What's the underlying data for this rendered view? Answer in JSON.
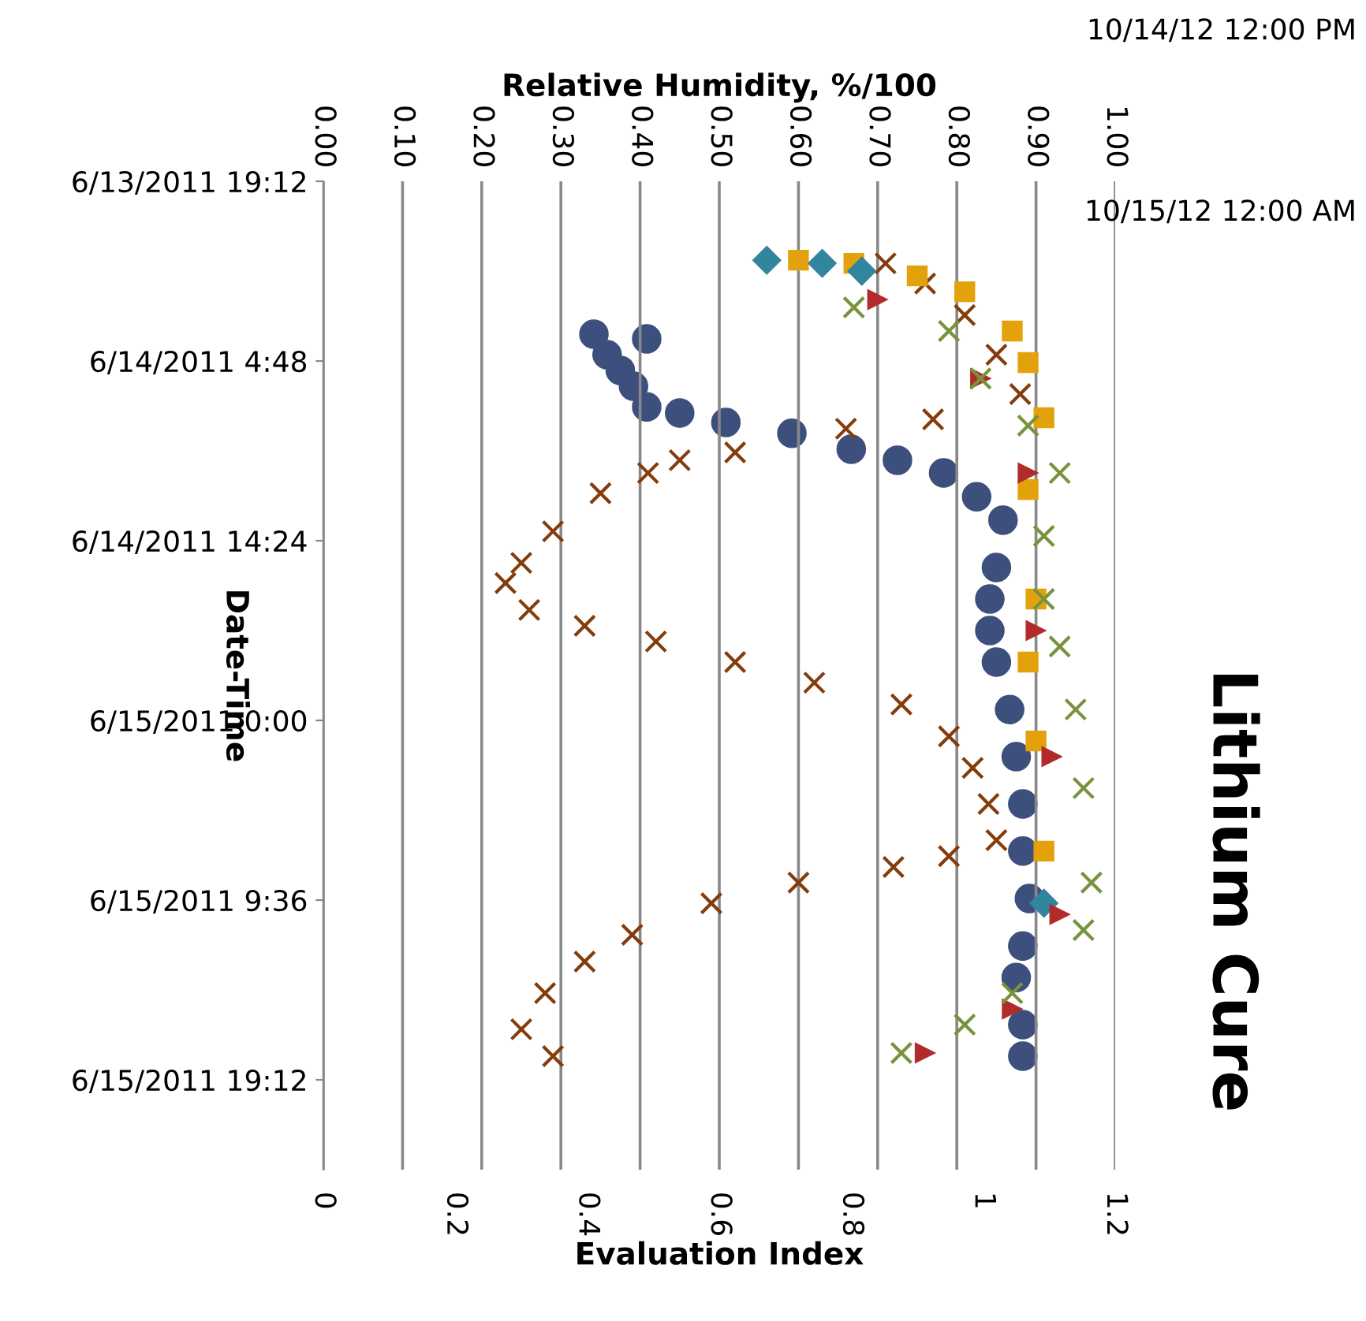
{
  "chart_data": {
    "type": "scatter",
    "title": "Lithium Cure",
    "ylabel": "Date-Time",
    "xlabel": "Evaluation Index",
    "x2label": "Relative Humidity, %/100",
    "annotations": [
      "10/14/12 12:00 PM",
      "10/15/12 12:00 AM"
    ],
    "orientation": "horizontal",
    "grid": "x2",
    "legend": false,
    "xlim": [
      0,
      1.2
    ],
    "xticks": [
      0,
      0.2,
      0.4,
      0.6,
      0.8,
      1,
      1.2
    ],
    "x2lim": [
      0,
      1
    ],
    "x2ticks": [
      {
        "value": 0,
        "label": "0.00"
      },
      {
        "value": 0.1,
        "label": "0.10"
      },
      {
        "value": 0.2,
        "label": "0.20"
      },
      {
        "value": 0.3,
        "label": "0.30"
      },
      {
        "value": 0.4,
        "label": "0.40"
      },
      {
        "value": 0.5,
        "label": "0.50"
      },
      {
        "value": 0.6,
        "label": "0.60"
      },
      {
        "value": 0.7,
        "label": "0.70"
      },
      {
        "value": 0.8,
        "label": "0.80"
      },
      {
        "value": 0.9,
        "label": "0.90"
      },
      {
        "value": 1,
        "label": "1.00"
      }
    ],
    "ylim": [
      "2011-06-16T00:00",
      "2011-06-13T19:12"
    ],
    "yticks": [
      {
        "value": "2011-06-13T19:12",
        "label": "6/13/2011 19:12"
      },
      {
        "value": "2011-06-14T04:48",
        "label": "6/14/2011 4:48"
      },
      {
        "value": "2011-06-14T14:24",
        "label": "6/14/2011 14:24"
      },
      {
        "value": "2011-06-15T00:00",
        "label": "6/15/2011 0:00"
      },
      {
        "value": "2011-06-15T09:36",
        "label": "6/15/2011 9:36"
      },
      {
        "value": "2011-06-15T19:12",
        "label": "6/15/2011 19:12"
      }
    ],
    "series": [
      {
        "color": "#843c0c",
        "marker": "cross",
        "axis": "x2",
        "x": [
          "2011-06-13T23:35",
          "2011-06-14T00:40",
          "2011-06-14T02:21",
          "2011-06-14T04:28",
          "2011-06-14T06:34",
          "2011-06-14T07:55",
          "2011-06-14T08:25",
          "2011-06-14T09:41",
          "2011-06-14T10:06",
          "2011-06-14T10:47",
          "2011-06-14T11:52",
          "2011-06-14T13:54",
          "2011-06-14T15:35",
          "2011-06-14T16:40",
          "2011-06-14T18:06",
          "2011-06-14T18:57",
          "2011-06-14T19:47",
          "2011-06-14T20:53",
          "2011-06-14T21:59",
          "2011-06-14T23:09",
          "2011-06-15T00:51",
          "2011-06-15T02:32",
          "2011-06-15T04:28",
          "2011-06-15T06:24",
          "2011-06-15T07:15",
          "2011-06-15T07:50",
          "2011-06-15T08:40",
          "2011-06-15T09:46",
          "2011-06-15T11:27",
          "2011-06-15T12:53",
          "2011-06-15T14:34",
          "2011-06-15T16:30",
          "2011-06-15T17:56"
        ],
        "values": [
          0.71,
          0.76,
          0.81,
          0.85,
          0.88,
          0.77,
          0.66,
          0.52,
          0.45,
          0.41,
          0.35,
          0.29,
          0.25,
          0.23,
          0.26,
          0.33,
          0.42,
          0.52,
          0.62,
          0.73,
          0.79,
          0.82,
          0.84,
          0.85,
          0.79,
          0.72,
          0.6,
          0.49,
          0.39,
          0.33,
          0.28,
          0.25,
          0.29
        ]
      },
      {
        "color": "#e3a20c",
        "marker": "square",
        "axis": "x2",
        "x": [
          "2011-06-13T23:25",
          "2011-06-13T23:35",
          "2011-06-14T00:15",
          "2011-06-14T01:06",
          "2011-06-14T03:12",
          "2011-06-14T04:53",
          "2011-06-14T07:50",
          "2011-06-14T11:40",
          "2011-06-14T17:31",
          "2011-06-14T20:53",
          "2011-06-15T01:06",
          "2011-06-15T06:59"
        ],
        "values": [
          0.6,
          0.67,
          0.75,
          0.81,
          0.87,
          0.89,
          0.91,
          0.89,
          0.9,
          0.89,
          0.9,
          0.91
        ]
      },
      {
        "color": "#31859c",
        "marker": "diamond",
        "axis": "x2",
        "x": [
          "2011-06-13T23:25",
          "2011-06-13T23:35",
          "2011-06-14T00:00",
          "2011-06-15T09:46"
        ],
        "values": [
          0.56,
          0.63,
          0.68,
          0.91
        ]
      },
      {
        "color": "#b22b2b",
        "marker": "triangle",
        "axis": "x2",
        "x": [
          "2011-06-14T01:31",
          "2011-06-14T05:44",
          "2011-06-14T10:47",
          "2011-06-14T19:12",
          "2011-06-15T01:56",
          "2011-06-15T10:22",
          "2011-06-15T15:25",
          "2011-06-15T17:46"
        ],
        "values": [
          0.7,
          0.83,
          0.89,
          0.9,
          0.92,
          0.93,
          0.87,
          0.76
        ]
      },
      {
        "color": "#77933c",
        "marker": "cross",
        "axis": "x2",
        "x": [
          "2011-06-14T01:56",
          "2011-06-14T03:12",
          "2011-06-14T05:44",
          "2011-06-14T08:15",
          "2011-06-14T10:47",
          "2011-06-14T14:09",
          "2011-06-14T17:31",
          "2011-06-14T20:03",
          "2011-06-14T23:25",
          "2011-06-15T03:37",
          "2011-06-15T08:40",
          "2011-06-15T11:12",
          "2011-06-15T14:34",
          "2011-06-15T16:15",
          "2011-06-15T17:46"
        ],
        "values": [
          0.67,
          0.79,
          0.83,
          0.89,
          0.93,
          0.91,
          0.91,
          0.93,
          0.95,
          0.96,
          0.97,
          0.96,
          0.87,
          0.81,
          0.73
        ]
      },
      {
        "color": "#3d4f7c",
        "marker": "circle",
        "x": [
          "2011-06-14T03:22",
          "2011-06-14T03:37",
          "2011-06-14T04:28",
          "2011-06-14T05:18",
          "2011-06-14T06:09",
          "2011-06-14T07:15",
          "2011-06-14T07:35",
          "2011-06-14T08:05",
          "2011-06-14T08:40",
          "2011-06-14T09:31",
          "2011-06-14T10:06",
          "2011-06-14T10:47",
          "2011-06-14T12:03",
          "2011-06-14T13:18",
          "2011-06-14T15:50",
          "2011-06-14T17:31",
          "2011-06-14T19:12",
          "2011-06-14T20:53",
          "2011-06-14T23:25",
          "2011-06-15T01:56",
          "2011-06-15T04:28",
          "2011-06-15T06:59",
          "2011-06-15T09:31",
          "2011-06-15T12:03",
          "2011-06-15T13:44",
          "2011-06-15T16:15",
          "2011-06-15T17:56"
        ],
        "values": [
          0.41,
          0.49,
          0.43,
          0.45,
          0.47,
          0.49,
          0.54,
          0.61,
          0.71,
          0.8,
          0.87,
          0.94,
          0.99,
          1.03,
          1.02,
          1.01,
          1.01,
          1.02,
          1.04,
          1.05,
          1.06,
          1.06,
          1.07,
          1.06,
          1.05,
          1.06,
          1.06
        ]
      }
    ]
  }
}
